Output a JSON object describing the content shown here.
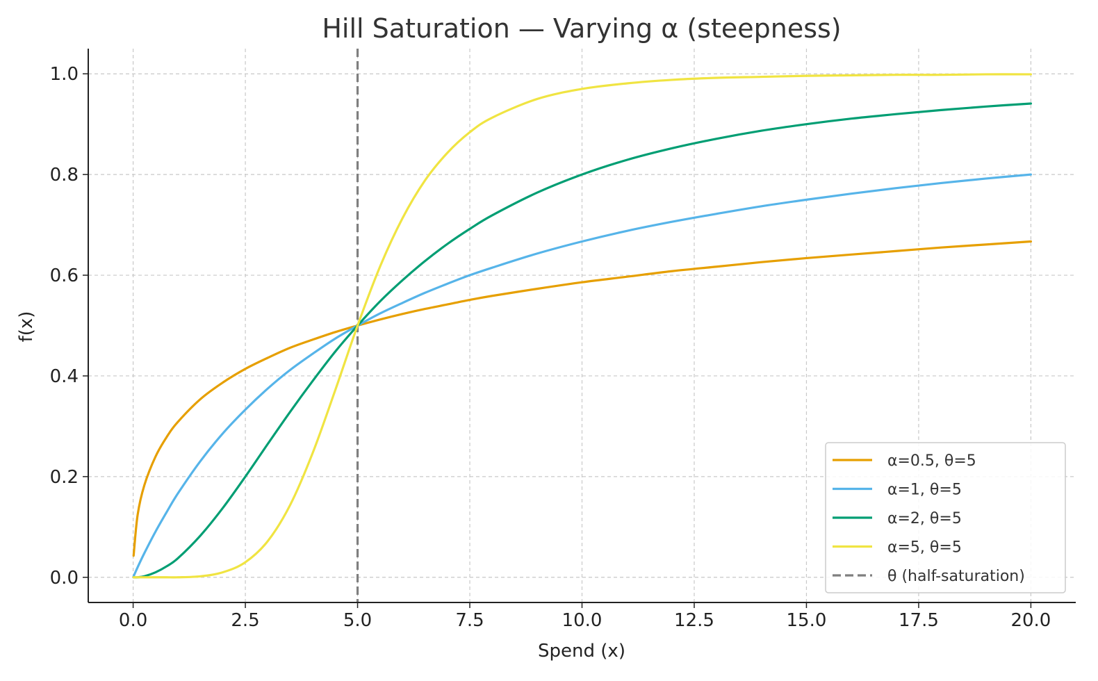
{
  "chart_data": {
    "type": "line",
    "title": "Hill Saturation — Varying α (steepness)",
    "xlabel": "Spend (x)",
    "ylabel": "f(x)",
    "xlim": [
      -1,
      21
    ],
    "ylim": [
      -0.05,
      1.05
    ],
    "xticks": [
      0,
      2.5,
      5,
      7.5,
      10,
      12.5,
      15,
      17.5,
      20
    ],
    "xtick_labels": [
      "0.0",
      "2.5",
      "5.0",
      "7.5",
      "10.0",
      "12.5",
      "15.0",
      "17.5",
      "20.0"
    ],
    "yticks": [
      0,
      0.2,
      0.4,
      0.6,
      0.8,
      1.0
    ],
    "ytick_labels": [
      "0.0",
      "0.2",
      "0.4",
      "0.6",
      "0.8",
      "1.0"
    ],
    "grid": true,
    "legend_position": "lower-right",
    "x": [
      0.01,
      0.1,
      0.25,
      0.5,
      0.75,
      1,
      1.5,
      2,
      2.5,
      3,
      3.5,
      4,
      4.5,
      5,
      5.5,
      6,
      6.5,
      7,
      7.5,
      8,
      9,
      10,
      11,
      12,
      13,
      14,
      15,
      16,
      17,
      18,
      19,
      20
    ],
    "series": [
      {
        "name": "α=0.5, θ=5",
        "color": "#E69F00",
        "values": [
          0.043,
          0.124,
          0.183,
          0.24,
          0.279,
          0.309,
          0.354,
          0.387,
          0.414,
          0.436,
          0.456,
          0.472,
          0.487,
          0.5,
          0.512,
          0.523,
          0.533,
          0.542,
          0.551,
          0.559,
          0.573,
          0.586,
          0.597,
          0.608,
          0.617,
          0.626,
          0.634,
          0.641,
          0.648,
          0.655,
          0.661,
          0.667
        ]
      },
      {
        "name": "α=1, θ=5",
        "color": "#56B4E9",
        "values": [
          0.002,
          0.02,
          0.048,
          0.091,
          0.13,
          0.167,
          0.231,
          0.286,
          0.333,
          0.375,
          0.412,
          0.444,
          0.474,
          0.5,
          0.524,
          0.545,
          0.565,
          0.583,
          0.6,
          0.615,
          0.643,
          0.667,
          0.688,
          0.706,
          0.722,
          0.737,
          0.75,
          0.762,
          0.773,
          0.783,
          0.792,
          0.8
        ]
      },
      {
        "name": "α=2, θ=5",
        "color": "#009E73",
        "values": [
          0.0,
          0.0,
          0.002,
          0.01,
          0.022,
          0.038,
          0.083,
          0.138,
          0.2,
          0.265,
          0.329,
          0.39,
          0.448,
          0.5,
          0.548,
          0.59,
          0.628,
          0.662,
          0.692,
          0.719,
          0.764,
          0.8,
          0.829,
          0.852,
          0.871,
          0.887,
          0.9,
          0.911,
          0.92,
          0.928,
          0.935,
          0.941
        ]
      },
      {
        "name": "α=5, θ=5",
        "color": "#F0E442",
        "values": [
          0.0,
          0.0,
          0.0,
          0.0,
          0.0,
          0.0,
          0.002,
          0.01,
          0.03,
          0.072,
          0.144,
          0.247,
          0.371,
          0.5,
          0.617,
          0.713,
          0.788,
          0.843,
          0.884,
          0.913,
          0.95,
          0.97,
          0.981,
          0.988,
          0.992,
          0.994,
          0.996,
          0.997,
          0.998,
          0.998,
          0.999,
          0.999
        ]
      }
    ],
    "reference_line": {
      "name": "θ (half-saturation)",
      "x": 5,
      "color": "#7f7f7f",
      "style": "dashed"
    }
  }
}
